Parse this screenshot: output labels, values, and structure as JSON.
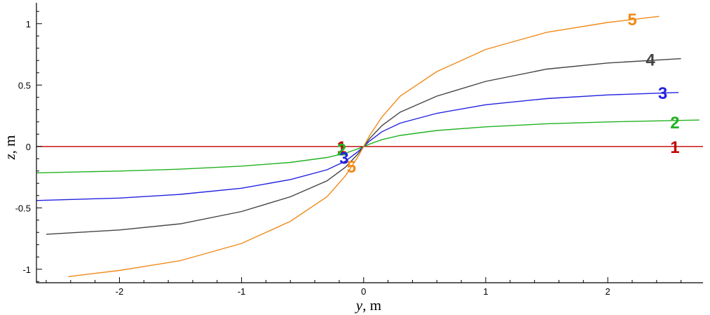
{
  "chart_data": {
    "type": "line",
    "title": "",
    "xlabel_var": "y",
    "xlabel_unit": ", m",
    "ylabel_var": "z",
    "ylabel_unit": ", m",
    "xlim": [
      -2.68,
      2.78
    ],
    "ylim": [
      -1.11,
      1.17
    ],
    "xticks": [
      -2,
      -1,
      0,
      1,
      2
    ],
    "xtick_labels": [
      "-2",
      "-1",
      "0",
      "1",
      "2"
    ],
    "yticks": [
      -1,
      -0.5,
      0,
      0.5,
      1
    ],
    "ytick_labels": [
      "-1",
      "-0.5",
      "0",
      "0.5",
      "1"
    ],
    "grid": false,
    "series": [
      {
        "name": "1",
        "color": "#c00000",
        "x": [
          -2.68,
          0,
          2.78
        ],
        "y": [
          0,
          0,
          0
        ],
        "label_positions": [
          [
            -0.18,
            0.0
          ],
          [
            2.55,
            0.0
          ]
        ]
      },
      {
        "name": "2",
        "color": "#22b222",
        "x": [
          -2.68,
          -2.0,
          -1.5,
          -1.0,
          -0.6,
          -0.3,
          -0.15,
          -0.05,
          0,
          0.05,
          0.15,
          0.3,
          0.6,
          1.0,
          1.5,
          2.0,
          2.75
        ],
        "y": [
          -0.215,
          -0.2,
          -0.185,
          -0.16,
          -0.13,
          -0.09,
          -0.055,
          -0.02,
          0,
          0.02,
          0.055,
          0.09,
          0.13,
          0.16,
          0.185,
          0.2,
          0.215
        ],
        "label_positions": [
          [
            -0.18,
            -0.02
          ],
          [
            2.55,
            0.2
          ]
        ]
      },
      {
        "name": "3",
        "color": "#2222e0",
        "x": [
          -2.68,
          -2.0,
          -1.5,
          -1.0,
          -0.6,
          -0.3,
          -0.15,
          -0.05,
          0,
          0.05,
          0.15,
          0.3,
          0.6,
          1.0,
          1.5,
          2.0,
          2.58
        ],
        "y": [
          -0.44,
          -0.42,
          -0.39,
          -0.34,
          -0.27,
          -0.19,
          -0.12,
          -0.045,
          0,
          0.045,
          0.12,
          0.19,
          0.27,
          0.34,
          0.39,
          0.42,
          0.44
        ],
        "label_positions": [
          [
            -0.16,
            -0.09
          ],
          [
            2.45,
            0.44
          ]
        ]
      },
      {
        "name": "4",
        "color": "#444444",
        "x": [
          -2.6,
          -2.0,
          -1.5,
          -1.0,
          -0.6,
          -0.3,
          -0.15,
          -0.05,
          0,
          0.05,
          0.15,
          0.3,
          0.6,
          1.0,
          1.5,
          2.0,
          2.6
        ],
        "y": [
          -0.715,
          -0.68,
          -0.63,
          -0.53,
          -0.41,
          -0.28,
          -0.17,
          -0.065,
          0,
          0.065,
          0.17,
          0.28,
          0.41,
          0.53,
          0.63,
          0.68,
          0.715
        ],
        "label_positions": [
          [
            2.35,
            0.71
          ]
        ]
      },
      {
        "name": "5",
        "color": "#f08a1a",
        "x": [
          -2.42,
          -2.0,
          -1.5,
          -1.0,
          -0.6,
          -0.3,
          -0.15,
          -0.05,
          0,
          0.05,
          0.15,
          0.3,
          0.6,
          1.0,
          1.5,
          2.0,
          2.42
        ],
        "y": [
          -1.06,
          -1.01,
          -0.93,
          -0.79,
          -0.61,
          -0.41,
          -0.24,
          -0.09,
          0,
          0.09,
          0.24,
          0.41,
          0.61,
          0.79,
          0.93,
          1.01,
          1.06
        ],
        "label_positions": [
          [
            -0.1,
            -0.16
          ],
          [
            2.2,
            1.04
          ]
        ]
      }
    ]
  }
}
